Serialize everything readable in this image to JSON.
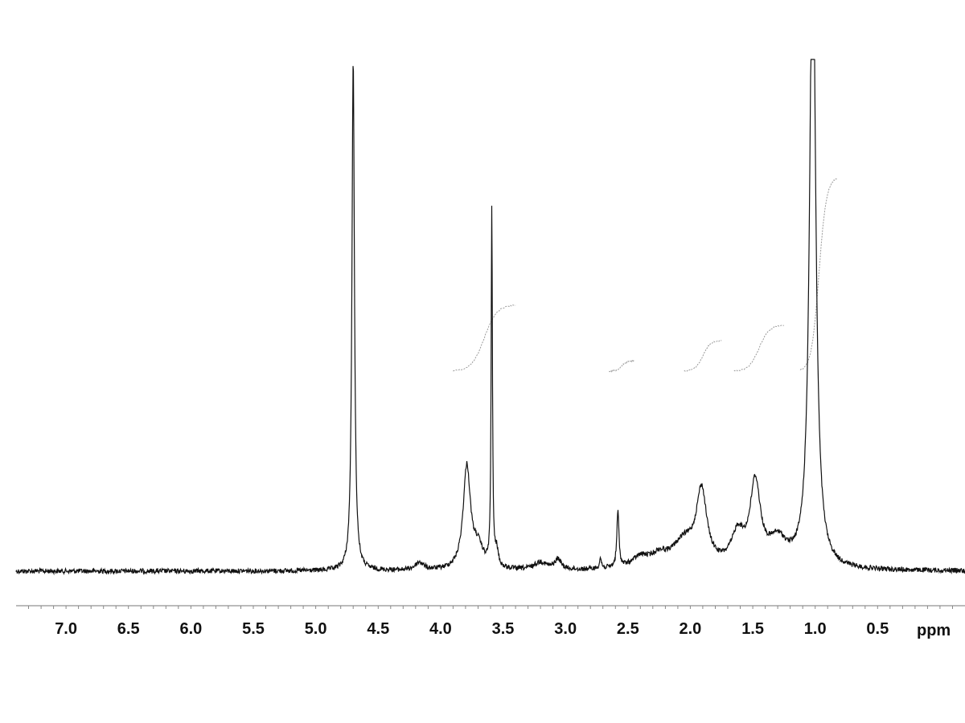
{
  "chart_data": {
    "type": "line",
    "title": "",
    "xlabel": "ppm",
    "ylabel": "",
    "x_reversed": true,
    "xlim": [
      7.4,
      -0.2
    ],
    "ylim": [
      0,
      1
    ],
    "grid": false,
    "x_ticks": [
      7.0,
      6.5,
      6.0,
      5.5,
      5.0,
      4.5,
      4.0,
      3.5,
      3.0,
      2.5,
      2.0,
      1.5,
      1.0,
      0.5
    ],
    "x_tick_labels": [
      "7.0",
      "6.5",
      "6.0",
      "5.5",
      "5.0",
      "4.5",
      "4.0",
      "3.5",
      "3.0",
      "2.5",
      "2.0",
      "1.5",
      "1.0",
      "0.5"
    ],
    "series": [
      {
        "style": "spectrum",
        "color": "#111111",
        "peaks": [
          {
            "ppm": 4.7,
            "height": 1.0,
            "width": 0.012
          },
          {
            "ppm": 4.17,
            "height": 0.015,
            "width": 0.04
          },
          {
            "ppm": 3.79,
            "height": 0.2,
            "width": 0.035
          },
          {
            "ppm": 3.7,
            "height": 0.04,
            "width": 0.05
          },
          {
            "ppm": 3.59,
            "height": 0.7,
            "width": 0.006
          },
          {
            "ppm": 3.55,
            "height": 0.03,
            "width": 0.015
          },
          {
            "ppm": 3.2,
            "height": 0.015,
            "width": 0.06
          },
          {
            "ppm": 3.06,
            "height": 0.02,
            "width": 0.03
          },
          {
            "ppm": 2.72,
            "height": 0.02,
            "width": 0.01
          },
          {
            "ppm": 2.58,
            "height": 0.11,
            "width": 0.01
          },
          {
            "ppm": 2.4,
            "height": 0.02,
            "width": 0.08
          },
          {
            "ppm": 2.25,
            "height": 0.02,
            "width": 0.08
          },
          {
            "ppm": 2.05,
            "height": 0.05,
            "width": 0.12
          },
          {
            "ppm": 1.91,
            "height": 0.14,
            "width": 0.05
          },
          {
            "ppm": 1.62,
            "height": 0.06,
            "width": 0.06
          },
          {
            "ppm": 1.48,
            "height": 0.16,
            "width": 0.05
          },
          {
            "ppm": 1.3,
            "height": 0.05,
            "width": 0.09
          },
          {
            "ppm": 1.02,
            "height": 1.3,
            "width": 0.028
          }
        ]
      },
      {
        "style": "integral",
        "color": "#9a9a9a",
        "segments": [
          {
            "from": 3.9,
            "to": 3.4,
            "rise": 0.13
          },
          {
            "from": 2.65,
            "to": 2.45,
            "rise": 0.02
          },
          {
            "from": 2.05,
            "to": 1.75,
            "rise": 0.06
          },
          {
            "from": 1.65,
            "to": 1.25,
            "rise": 0.09
          },
          {
            "from": 1.12,
            "to": 0.82,
            "rise": 0.38
          }
        ]
      }
    ]
  }
}
